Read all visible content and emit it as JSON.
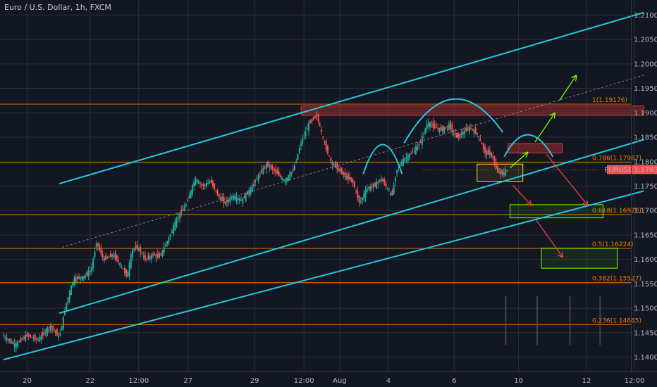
{
  "chart_data": {
    "type": "candlestick",
    "title": "Euro / U.S. Dollar, 1h, FXCM",
    "symbol": "EURUSD",
    "last_price": "1.17832",
    "last_price_value": 1.17832,
    "colors": {
      "background": "#131722",
      "grid": "#2a2e39",
      "up": "#26a69a",
      "down": "#ef5350",
      "channel": "#26c6da",
      "fib": "#f57c00",
      "zone_red": "#e53935",
      "zone_green": "#76ff03",
      "zone_yellow": "#ffd740",
      "arrow_green": "#76ff03",
      "arrow_red": "#f44336",
      "price_tag": "#ef5350"
    },
    "y_axis": {
      "min": 1.137,
      "max": 1.213,
      "ticks": [
        "1.14000",
        "1.14500",
        "1.15000",
        "1.15500",
        "1.16000",
        "1.16500",
        "1.17000",
        "1.17500",
        "1.18000",
        "1.18500",
        "1.19000",
        "1.19500",
        "1.20000",
        "1.20500",
        "1.21000"
      ]
    },
    "x_axis": {
      "index_range": [
        0,
        882
      ],
      "ticks": [
        {
          "label": "20",
          "i": 33
        },
        {
          "label": "22",
          "i": 121
        },
        {
          "label": "12:00",
          "i": 189
        },
        {
          "label": "27",
          "i": 258
        },
        {
          "label": "29",
          "i": 351
        },
        {
          "label": "12:00",
          "i": 420
        },
        {
          "label": "Aug",
          "i": 470
        },
        {
          "label": "4",
          "i": 538
        },
        {
          "label": "6",
          "i": 630
        },
        {
          "label": "10",
          "i": 720
        },
        {
          "label": "12",
          "i": 815
        },
        {
          "label": "12:00",
          "i": 882
        }
      ]
    },
    "fib_levels": [
      {
        "label": "1(1.19176)",
        "value": 1.19176
      },
      {
        "label": "0.786(1.17987)",
        "value": 1.17987
      },
      {
        "label": "0.618(1.16920)",
        "value": 1.1692
      },
      {
        "label": "0.5(1.16224)",
        "value": 1.16224
      },
      {
        "label": "0.382(1.15527)",
        "value": 1.15527
      },
      {
        "label": "0.236(1.14665)",
        "value": 1.14665
      }
    ],
    "path_points": [
      [
        0,
        1.1445
      ],
      [
        18,
        1.1425
      ],
      [
        35,
        1.1445
      ],
      [
        50,
        1.1435
      ],
      [
        68,
        1.1465
      ],
      [
        80,
        1.144
      ],
      [
        90,
        1.151
      ],
      [
        100,
        1.156
      ],
      [
        115,
        1.1565
      ],
      [
        125,
        1.158
      ],
      [
        132,
        1.1635
      ],
      [
        142,
        1.16
      ],
      [
        155,
        1.161
      ],
      [
        165,
        1.159
      ],
      [
        175,
        1.1565
      ],
      [
        182,
        1.162
      ],
      [
        190,
        1.1625
      ],
      [
        200,
        1.16
      ],
      [
        212,
        1.161
      ],
      [
        220,
        1.1605
      ],
      [
        232,
        1.164
      ],
      [
        245,
        1.1685
      ],
      [
        258,
        1.1715
      ],
      [
        270,
        1.1765
      ],
      [
        280,
        1.175
      ],
      [
        292,
        1.176
      ],
      [
        302,
        1.173
      ],
      [
        312,
        1.1715
      ],
      [
        322,
        1.173
      ],
      [
        335,
        1.172
      ],
      [
        348,
        1.1745
      ],
      [
        358,
        1.177
      ],
      [
        370,
        1.1795
      ],
      [
        382,
        1.178
      ],
      [
        395,
        1.176
      ],
      [
        408,
        1.1785
      ],
      [
        418,
        1.184
      ],
      [
        430,
        1.188
      ],
      [
        440,
        1.1895
      ],
      [
        450,
        1.184
      ],
      [
        460,
        1.18
      ],
      [
        470,
        1.1785
      ],
      [
        480,
        1.177
      ],
      [
        490,
        1.176
      ],
      [
        500,
        1.1715
      ],
      [
        510,
        1.1745
      ],
      [
        520,
        1.175
      ],
      [
        530,
        1.1765
      ],
      [
        545,
        1.173
      ],
      [
        552,
        1.1785
      ],
      [
        562,
        1.1805
      ],
      [
        575,
        1.182
      ],
      [
        585,
        1.184
      ],
      [
        595,
        1.188
      ],
      [
        605,
        1.187
      ],
      [
        615,
        1.1865
      ],
      [
        625,
        1.1875
      ],
      [
        635,
        1.185
      ],
      [
        645,
        1.186
      ],
      [
        655,
        1.187
      ],
      [
        665,
        1.1855
      ],
      [
        675,
        1.182
      ],
      [
        685,
        1.1815
      ],
      [
        692,
        1.178
      ],
      [
        700,
        1.1775
      ],
      [
        706,
        1.1783
      ]
    ],
    "channel_lines": [
      {
        "from": [
          78,
          1.1755
        ],
        "to": [
          895,
          1.2105
        ]
      },
      {
        "from": [
          78,
          1.149
        ],
        "to": [
          895,
          1.1845
        ]
      },
      {
        "from": [
          0,
          1.1395
        ],
        "to": [
          895,
          1.174
        ]
      }
    ],
    "midline": {
      "from": [
        82,
        1.1625
      ],
      "to": [
        895,
        1.1977
      ]
    },
    "zones": [
      {
        "kind": "red",
        "from": [
          416,
          1.1914
        ],
        "to": [
          895,
          1.1895
        ]
      },
      {
        "kind": "red",
        "from": [
          705,
          1.1837
        ],
        "to": [
          781,
          1.1818
        ]
      },
      {
        "kind": "yellow",
        "from": [
          662,
          1.1795
        ],
        "to": [
          726,
          1.176
        ]
      },
      {
        "kind": "green",
        "from": [
          708,
          1.1712
        ],
        "to": [
          838,
          1.1685
        ]
      },
      {
        "kind": "green",
        "from": [
          752,
          1.1623
        ],
        "to": [
          858,
          1.1582
        ]
      }
    ],
    "arcs": [
      {
        "from": [
          503,
          1.1775
        ],
        "peak": [
          530,
          1.1835
        ],
        "to": [
          557,
          1.1775
        ]
      },
      {
        "from": [
          560,
          1.1838
        ],
        "peak": [
          628,
          1.1928
        ],
        "to": [
          698,
          1.186
        ]
      },
      {
        "from": [
          700,
          1.181
        ],
        "peak": [
          733,
          1.1855
        ],
        "to": [
          768,
          1.181
        ]
      }
    ],
    "arrows": [
      {
        "color": "green",
        "from": [
          708,
          1.1787
        ],
        "to": [
          732,
          1.1818
        ]
      },
      {
        "color": "green",
        "from": [
          743,
          1.184
        ],
        "to": [
          770,
          1.1898
        ]
      },
      {
        "color": "green",
        "from": [
          777,
          1.1925
        ],
        "to": [
          800,
          1.1975
        ]
      },
      {
        "color": "red",
        "from": [
          712,
          1.1752
        ],
        "to": [
          737,
          1.1712
        ]
      },
      {
        "color": "red",
        "from": [
          759,
          1.1815
        ],
        "to": [
          816,
          1.1712
        ]
      },
      {
        "color": "red",
        "from": [
          745,
          1.168
        ],
        "to": [
          781,
          1.1606
        ]
      }
    ],
    "vertical_guides": [
      702,
      746,
      792,
      834
    ]
  }
}
